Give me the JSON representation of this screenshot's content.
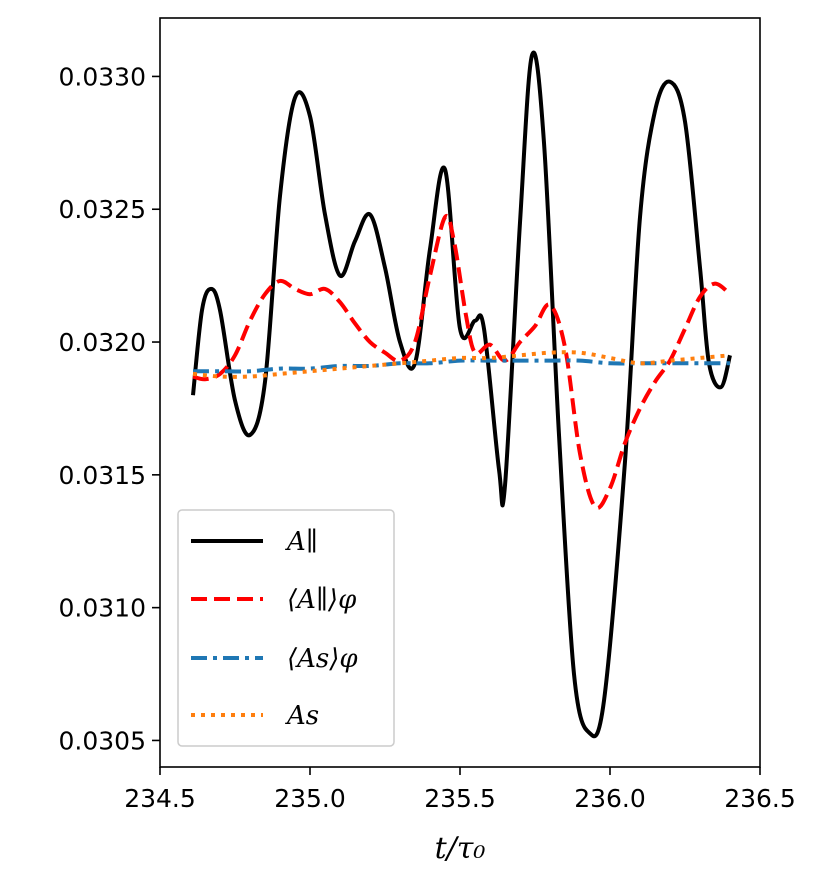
{
  "chart_data": {
    "type": "line",
    "xlabel": "t/τ₀",
    "ylabel": "",
    "xlim": [
      234.5,
      236.5
    ],
    "ylim": [
      0.0304,
      0.03322
    ],
    "xticks": [
      234.5,
      235.0,
      235.5,
      236.0,
      236.5
    ],
    "xtick_labels": [
      "234.5",
      "235.0",
      "235.5",
      "236.0",
      "236.5"
    ],
    "yticks": [
      0.0305,
      0.031,
      0.0315,
      0.032,
      0.0325,
      0.033
    ],
    "ytick_labels": [
      "0.0305",
      "0.0310",
      "0.0315",
      "0.0320",
      "0.0325",
      "0.0330"
    ],
    "grid": false,
    "legend_position": "lower-left",
    "series": [
      {
        "name": "A∥",
        "color": "#000000",
        "style": "solid",
        "x": [
          234.61,
          234.64,
          234.67,
          234.7,
          234.75,
          234.8,
          234.85,
          234.9,
          234.95,
          235.0,
          235.05,
          235.1,
          235.15,
          235.2,
          235.25,
          235.3,
          235.35,
          235.4,
          235.45,
          235.5,
          235.55,
          235.58,
          235.63,
          235.65,
          235.7,
          235.74,
          235.78,
          235.83,
          235.88,
          235.93,
          235.98,
          236.05,
          236.1,
          236.15,
          236.2,
          236.25,
          236.3,
          236.33,
          236.37,
          236.4
        ],
        "y": [
          0.0318,
          0.03212,
          0.0322,
          0.03212,
          0.03178,
          0.03165,
          0.03185,
          0.03255,
          0.03292,
          0.03285,
          0.03248,
          0.03225,
          0.03238,
          0.03248,
          0.03228,
          0.032,
          0.03192,
          0.03235,
          0.03265,
          0.03205,
          0.03208,
          0.03205,
          0.03152,
          0.03146,
          0.03245,
          0.03308,
          0.03275,
          0.03165,
          0.03075,
          0.03053,
          0.03065,
          0.03155,
          0.03247,
          0.03287,
          0.03298,
          0.03283,
          0.03228,
          0.03192,
          0.03183,
          0.03195
        ]
      },
      {
        "name": "⟨A∥⟩φ",
        "color": "#ff0000",
        "style": "dashed",
        "x": [
          234.61,
          234.65,
          234.7,
          234.75,
          234.8,
          234.85,
          234.9,
          234.95,
          235.0,
          235.05,
          235.1,
          235.15,
          235.2,
          235.25,
          235.3,
          235.35,
          235.4,
          235.45,
          235.48,
          235.52,
          235.55,
          235.6,
          235.65,
          235.7,
          235.75,
          235.8,
          235.85,
          235.9,
          235.95,
          236.0,
          236.05,
          236.1,
          236.15,
          236.2,
          236.25,
          236.3,
          236.35,
          236.4
        ],
        "y": [
          0.03187,
          0.03186,
          0.03188,
          0.03195,
          0.03208,
          0.03218,
          0.03223,
          0.0322,
          0.03218,
          0.0322,
          0.03215,
          0.03207,
          0.032,
          0.03196,
          0.03193,
          0.032,
          0.03225,
          0.03247,
          0.03238,
          0.0321,
          0.03196,
          0.03199,
          0.03193,
          0.032,
          0.03206,
          0.03214,
          0.03198,
          0.03158,
          0.03138,
          0.03145,
          0.03162,
          0.03175,
          0.03185,
          0.03193,
          0.03205,
          0.03217,
          0.03222,
          0.03218
        ]
      },
      {
        "name": "⟨As⟩φ",
        "color": "#1f77b4",
        "style": "dashdot",
        "x": [
          234.61,
          234.7,
          234.8,
          234.9,
          235.0,
          235.1,
          235.2,
          235.3,
          235.4,
          235.5,
          235.6,
          235.7,
          235.8,
          235.9,
          236.0,
          236.1,
          236.2,
          236.3,
          236.4
        ],
        "y": [
          0.03189,
          0.03189,
          0.03189,
          0.0319,
          0.0319,
          0.03191,
          0.03191,
          0.03192,
          0.03192,
          0.03193,
          0.03193,
          0.03193,
          0.03193,
          0.03193,
          0.03192,
          0.03192,
          0.03192,
          0.03192,
          0.03192
        ]
      },
      {
        "name": "As",
        "color": "#ff7f0e",
        "style": "dotted",
        "x": [
          234.61,
          234.7,
          234.8,
          234.9,
          235.0,
          235.1,
          235.2,
          235.3,
          235.4,
          235.5,
          235.6,
          235.7,
          235.8,
          235.9,
          236.0,
          236.1,
          236.2,
          236.3,
          236.4
        ],
        "y": [
          0.03188,
          0.03187,
          0.03187,
          0.03188,
          0.03189,
          0.0319,
          0.03191,
          0.03192,
          0.03193,
          0.03194,
          0.03194,
          0.03195,
          0.03196,
          0.03196,
          0.03194,
          0.03192,
          0.03193,
          0.03194,
          0.03195
        ]
      }
    ]
  }
}
